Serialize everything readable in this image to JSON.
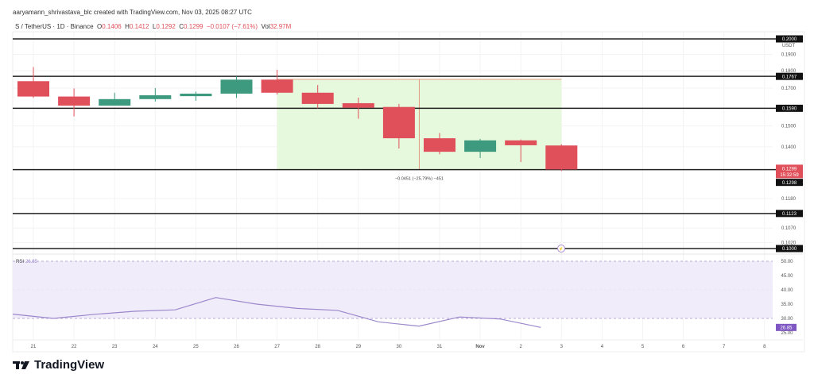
{
  "header": {
    "attribution": "aaryamann_shrivastava_blc created with TradingView.com, Nov 03, 2025 08:27 UTC",
    "symbol": "S / TetherUS · 1D · Binance",
    "o_label": "O",
    "o": "0.1406",
    "h_label": "H",
    "h": "0.1412",
    "l_label": "L",
    "l": "0.1292",
    "c_label": "C",
    "c": "0.1299",
    "change": "−0.0107 (−7.61%)",
    "vol_label": "Vol",
    "vol": "32.97M"
  },
  "logo": {
    "text": "TradingView"
  },
  "colors": {
    "up": "#3d9a7e",
    "down": "#e0505a",
    "range_fill": "#e6f9dd",
    "rsi": "#9b87cc",
    "rsi_band": "#f1ecf9",
    "level": "#222222"
  },
  "chart_data": {
    "type": "candlestick",
    "price_unit": "USDT",
    "price_scale": "log",
    "ylim": [
      0.1,
      0.2
    ],
    "y_ticks": [
      "0.1900",
      "0.1800",
      "0.1700",
      "0.1500",
      "0.1400",
      "0.1180",
      "0.1070",
      "0.1020"
    ],
    "x_ticks": [
      "21",
      "22",
      "23",
      "24",
      "25",
      "26",
      "27",
      "28",
      "29",
      "30",
      "31",
      "Nov",
      "2",
      "3",
      "4",
      "5",
      "6",
      "7",
      "8"
    ],
    "candles": [
      {
        "date": "21",
        "o": 0.1739,
        "h": 0.1822,
        "l": 0.1645,
        "c": 0.1653
      },
      {
        "date": "22",
        "o": 0.1653,
        "h": 0.1698,
        "l": 0.1548,
        "c": 0.1604
      },
      {
        "date": "23",
        "o": 0.1604,
        "h": 0.1674,
        "l": 0.1604,
        "c": 0.1639
      },
      {
        "date": "24",
        "o": 0.1639,
        "h": 0.17,
        "l": 0.1626,
        "c": 0.166
      },
      {
        "date": "25",
        "o": 0.1655,
        "h": 0.168,
        "l": 0.163,
        "c": 0.1669
      },
      {
        "date": "26",
        "o": 0.1669,
        "h": 0.1767,
        "l": 0.1645,
        "c": 0.1748
      },
      {
        "date": "27",
        "o": 0.1748,
        "h": 0.1806,
        "l": 0.1664,
        "c": 0.1674
      },
      {
        "date": "28",
        "o": 0.1674,
        "h": 0.1717,
        "l": 0.1589,
        "c": 0.1613
      },
      {
        "date": "29",
        "o": 0.1617,
        "h": 0.1647,
        "l": 0.1536,
        "c": 0.1593
      },
      {
        "date": "30",
        "o": 0.1597,
        "h": 0.1613,
        "l": 0.1392,
        "c": 0.144
      },
      {
        "date": "31",
        "o": 0.144,
        "h": 0.1465,
        "l": 0.1366,
        "c": 0.1377
      },
      {
        "date": "Nov",
        "o": 0.1377,
        "h": 0.1437,
        "l": 0.1349,
        "c": 0.143
      },
      {
        "date": "2",
        "o": 0.143,
        "h": 0.1434,
        "l": 0.1331,
        "c": 0.1407
      },
      {
        "date": "3",
        "o": 0.1406,
        "h": 0.1412,
        "l": 0.1292,
        "c": 0.1299
      }
    ],
    "levels": [
      "0.2000",
      "0.1767",
      "0.1590",
      "0.1298",
      "0.1123",
      "0.1000"
    ],
    "last_price": {
      "value": "0.1299",
      "countdown": "15:32:59"
    },
    "measure": {
      "from_date": "27",
      "to_date": "3",
      "top": 0.175,
      "bottom": 0.1299,
      "label": "−0.0451 (−25.79%) −451"
    },
    "rsi": {
      "label": "RSI",
      "value": "26.85",
      "ylim": [
        25,
        50
      ],
      "band": [
        30,
        50
      ],
      "y_ticks": [
        "50.00",
        "45.00",
        "40.00",
        "35.00",
        "30.00",
        "25.00"
      ],
      "values": [
        31.5,
        30.0,
        31.4,
        32.5,
        33.0,
        37.3,
        35.0,
        33.5,
        32.8,
        28.8,
        27.3,
        30.5,
        29.8,
        26.85
      ]
    }
  }
}
